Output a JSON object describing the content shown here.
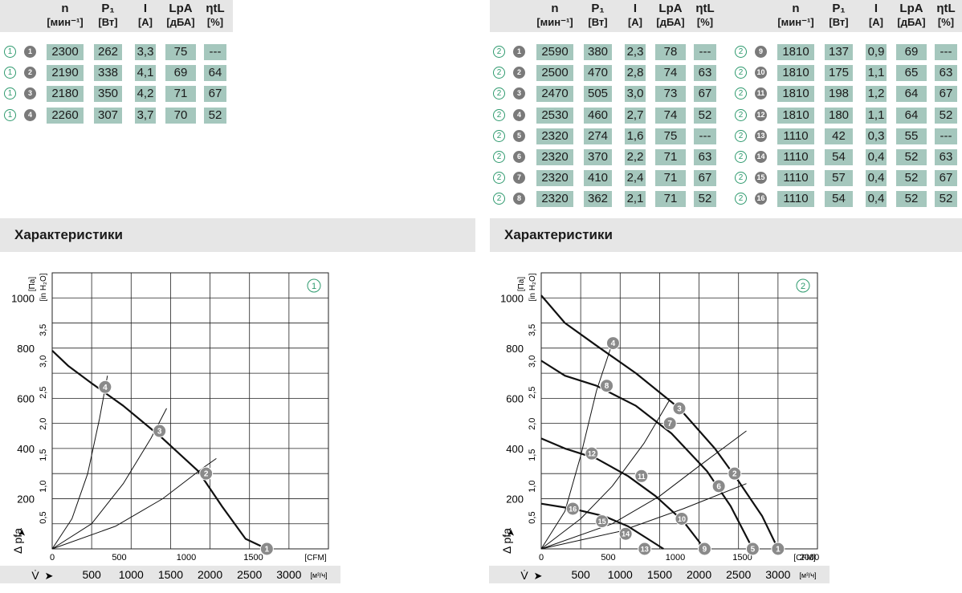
{
  "columns": [
    {
      "sym": "n",
      "unit": "[мин⁻¹]"
    },
    {
      "sym": "P₁",
      "unit": "[Вт]"
    },
    {
      "sym": "I",
      "unit": "[A]"
    },
    {
      "sym": "LpA",
      "unit": "[дБА]"
    },
    {
      "sym": "ηtL",
      "unit": "[%]"
    }
  ],
  "table_left": [
    {
      "curve": "1",
      "pt": "1",
      "v": [
        "2300",
        "262",
        "3,3",
        "75",
        "---"
      ]
    },
    {
      "curve": "1",
      "pt": "2",
      "v": [
        "2190",
        "338",
        "4,1",
        "69",
        "64"
      ]
    },
    {
      "curve": "1",
      "pt": "3",
      "v": [
        "2180",
        "350",
        "4,2",
        "71",
        "67"
      ]
    },
    {
      "curve": "1",
      "pt": "4",
      "v": [
        "2260",
        "307",
        "3,7",
        "70",
        "52"
      ]
    }
  ],
  "table_mid": [
    {
      "curve": "2",
      "pt": "1",
      "v": [
        "2590",
        "380",
        "2,3",
        "78",
        "---"
      ]
    },
    {
      "curve": "2",
      "pt": "2",
      "v": [
        "2500",
        "470",
        "2,8",
        "74",
        "63"
      ]
    },
    {
      "curve": "2",
      "pt": "3",
      "v": [
        "2470",
        "505",
        "3,0",
        "73",
        "67"
      ]
    },
    {
      "curve": "2",
      "pt": "4",
      "v": [
        "2530",
        "460",
        "2,7",
        "74",
        "52"
      ]
    },
    {
      "curve": "2",
      "pt": "5",
      "v": [
        "2320",
        "274",
        "1,6",
        "75",
        "---"
      ]
    },
    {
      "curve": "2",
      "pt": "6",
      "v": [
        "2320",
        "370",
        "2,2",
        "71",
        "63"
      ]
    },
    {
      "curve": "2",
      "pt": "7",
      "v": [
        "2320",
        "410",
        "2,4",
        "71",
        "67"
      ]
    },
    {
      "curve": "2",
      "pt": "8",
      "v": [
        "2320",
        "362",
        "2,1",
        "71",
        "52"
      ]
    }
  ],
  "table_right": [
    {
      "curve": "2",
      "pt": "9",
      "v": [
        "1810",
        "137",
        "0,9",
        "69",
        "---"
      ]
    },
    {
      "curve": "2",
      "pt": "10",
      "v": [
        "1810",
        "175",
        "1,1",
        "65",
        "63"
      ]
    },
    {
      "curve": "2",
      "pt": "11",
      "v": [
        "1810",
        "198",
        "1,2",
        "64",
        "67"
      ]
    },
    {
      "curve": "2",
      "pt": "12",
      "v": [
        "1810",
        "180",
        "1,1",
        "64",
        "52"
      ]
    },
    {
      "curve": "2",
      "pt": "13",
      "v": [
        "1110",
        "42",
        "0,3",
        "55",
        "---"
      ]
    },
    {
      "curve": "2",
      "pt": "14",
      "v": [
        "1110",
        "54",
        "0,4",
        "52",
        "63"
      ]
    },
    {
      "curve": "2",
      "pt": "15",
      "v": [
        "1110",
        "57",
        "0,4",
        "52",
        "67"
      ]
    },
    {
      "curve": "2",
      "pt": "16",
      "v": [
        "1110",
        "54",
        "0,4",
        "52",
        "52"
      ]
    }
  ],
  "section_title": "Характеристики",
  "colors": {
    "cell": "#a5c7bd",
    "marker_green": "#2e9a6e",
    "point": "#7a7a7a",
    "header_bg": "#e6e6e6"
  },
  "chart_data": [
    {
      "type": "line",
      "badge": "1",
      "ylabel_left": "Δ pfa",
      "yunit_pa": "[Па]",
      "yunit_in": "[in H₂O]",
      "xunit_cfm": "[CFM]",
      "xunit_m3h": "[м³/ч]",
      "xlabel": "V̇",
      "x_m3h_ticks": [
        "500",
        "1000",
        "1500",
        "2000",
        "2500",
        "3000"
      ],
      "x_cfm_ticks": [
        "0",
        "500",
        "1000",
        "1500"
      ],
      "y_pa_ticks": [
        "200",
        "400",
        "600",
        "800",
        "1000"
      ],
      "y_in_ticks": [
        "0,5",
        "1,0",
        "1,5",
        "2,0",
        "2,5",
        "3,0",
        "3,5"
      ],
      "xlim_m3h": [
        0,
        3500
      ],
      "ylim_pa": [
        0,
        1100
      ],
      "series": [
        {
          "kind": "fan",
          "points": [
            [
              0,
              790
            ],
            [
              200,
              730
            ],
            [
              500,
              660
            ],
            [
              900,
              570
            ],
            [
              1400,
              440
            ],
            [
              1850,
              310
            ],
            [
              2150,
              170
            ],
            [
              2450,
              40
            ],
            [
              2720,
              0
            ]
          ]
        },
        {
          "kind": "system",
          "points": [
            [
              0,
              0
            ],
            [
              250,
              120
            ],
            [
              450,
              300
            ],
            [
              600,
              520
            ],
            [
              700,
              690
            ]
          ]
        },
        {
          "kind": "system",
          "points": [
            [
              0,
              0
            ],
            [
              500,
              100
            ],
            [
              900,
              260
            ],
            [
              1250,
              440
            ],
            [
              1450,
              560
            ]
          ]
        },
        {
          "kind": "system",
          "points": [
            [
              0,
              0
            ],
            [
              800,
              90
            ],
            [
              1400,
              200
            ],
            [
              1900,
              320
            ],
            [
              2080,
              360
            ]
          ]
        }
      ],
      "operating_points": [
        {
          "label": "1",
          "x": 2720,
          "y": 0
        },
        {
          "label": "2",
          "x": 1950,
          "y": 300
        },
        {
          "label": "3",
          "x": 1360,
          "y": 470
        },
        {
          "label": "4",
          "x": 670,
          "y": 645
        }
      ]
    },
    {
      "type": "line",
      "badge": "2",
      "ylabel_left": "Δ pfa",
      "yunit_pa": "[Па]",
      "yunit_in": "[in H₂O]",
      "xunit_cfm": "[CFM]",
      "xunit_m3h": "[м³/ч]",
      "xlabel": "V̇",
      "x_m3h_ticks": [
        "500",
        "1000",
        "1500",
        "2000",
        "2500",
        "3000"
      ],
      "x_cfm_ticks": [
        "0",
        "500",
        "1000",
        "1500",
        "2000"
      ],
      "y_pa_ticks": [
        "200",
        "400",
        "600",
        "800",
        "1000"
      ],
      "y_in_ticks": [
        "0,5",
        "1,0",
        "1,5",
        "2,0",
        "2,5",
        "3,0",
        "3,5"
      ],
      "xlim_m3h": [
        0,
        3500
      ],
      "ylim_pa": [
        0,
        1100
      ],
      "series": [
        {
          "kind": "fan",
          "points": [
            [
              0,
              1010
            ],
            [
              300,
              900
            ],
            [
              700,
              810
            ],
            [
              1200,
              700
            ],
            [
              1750,
              560
            ],
            [
              2200,
              400
            ],
            [
              2500,
              270
            ],
            [
              2800,
              130
            ],
            [
              3000,
              0
            ]
          ]
        },
        {
          "kind": "fan",
          "points": [
            [
              0,
              750
            ],
            [
              300,
              690
            ],
            [
              700,
              650
            ],
            [
              1200,
              570
            ],
            [
              1650,
              460
            ],
            [
              2100,
              310
            ],
            [
              2400,
              170
            ],
            [
              2680,
              0
            ]
          ]
        },
        {
          "kind": "fan",
          "points": [
            [
              0,
              440
            ],
            [
              300,
              400
            ],
            [
              700,
              360
            ],
            [
              1100,
              290
            ],
            [
              1450,
              210
            ],
            [
              1800,
              110
            ],
            [
              2070,
              0
            ]
          ]
        },
        {
          "kind": "fan",
          "points": [
            [
              0,
              180
            ],
            [
              400,
              160
            ],
            [
              800,
              130
            ],
            [
              1100,
              90
            ],
            [
              1350,
              40
            ],
            [
              1550,
              0
            ]
          ]
        },
        {
          "kind": "system",
          "points": [
            [
              0,
              0
            ],
            [
              300,
              150
            ],
            [
              500,
              370
            ],
            [
              700,
              630
            ],
            [
              900,
              820
            ]
          ]
        },
        {
          "kind": "system",
          "points": [
            [
              0,
              0
            ],
            [
              500,
              120
            ],
            [
              900,
              250
            ],
            [
              1300,
              420
            ],
            [
              1620,
              590
            ]
          ]
        },
        {
          "kind": "system",
          "points": [
            [
              0,
              0
            ],
            [
              900,
              100
            ],
            [
              1500,
              210
            ],
            [
              2000,
              330
            ],
            [
              2600,
              470
            ]
          ]
        },
        {
          "kind": "system",
          "points": [
            [
              0,
              0
            ],
            [
              1000,
              70
            ],
            [
              1800,
              160
            ],
            [
              2600,
              260
            ]
          ]
        }
      ],
      "operating_points": [
        {
          "label": "1",
          "x": 3000,
          "y": 0
        },
        {
          "label": "2",
          "x": 2450,
          "y": 300
        },
        {
          "label": "3",
          "x": 1750,
          "y": 560
        },
        {
          "label": "4",
          "x": 910,
          "y": 820
        },
        {
          "label": "5",
          "x": 2680,
          "y": 0
        },
        {
          "label": "6",
          "x": 2250,
          "y": 250
        },
        {
          "label": "7",
          "x": 1630,
          "y": 500
        },
        {
          "label": "8",
          "x": 830,
          "y": 650
        },
        {
          "label": "9",
          "x": 2070,
          "y": 0
        },
        {
          "label": "10",
          "x": 1780,
          "y": 120
        },
        {
          "label": "11",
          "x": 1270,
          "y": 290
        },
        {
          "label": "12",
          "x": 640,
          "y": 380
        },
        {
          "label": "13",
          "x": 1310,
          "y": 0
        },
        {
          "label": "14",
          "x": 1070,
          "y": 60
        },
        {
          "label": "15",
          "x": 770,
          "y": 110
        },
        {
          "label": "16",
          "x": 400,
          "y": 160
        }
      ]
    }
  ]
}
